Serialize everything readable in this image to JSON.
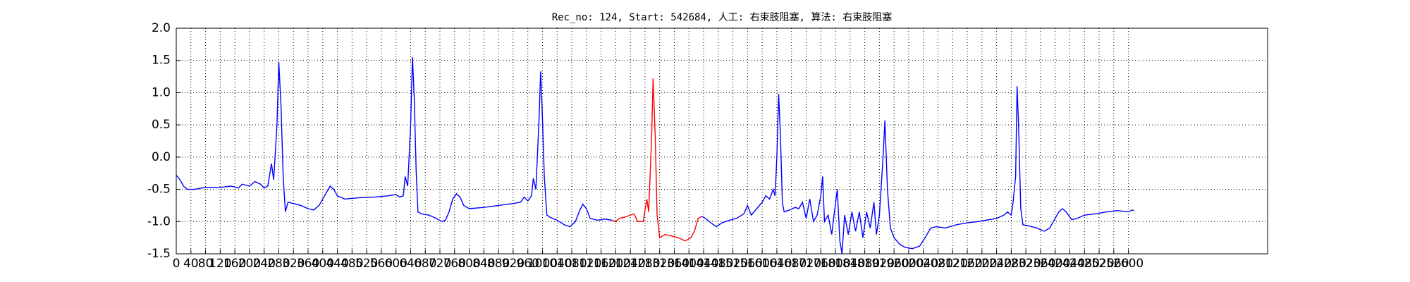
{
  "chart_data": {
    "type": "line",
    "title": "Rec_no: 124, Start: 542684, 人工: 右束肢阻塞, 算法: 右束肢阻塞",
    "xlim": [
      0,
      2980
    ],
    "ylim": [
      -1.5,
      2.0
    ],
    "xticks": [
      0,
      40,
      80,
      120,
      160,
      200,
      240,
      280,
      320,
      360,
      400,
      440,
      480,
      520,
      560,
      600,
      640,
      680,
      720,
      760,
      800,
      840,
      880,
      920,
      960,
      1000,
      1040,
      1080,
      1120,
      1160,
      1200,
      1240,
      1280,
      1320,
      1360,
      1400,
      1440,
      1480,
      1520,
      1560,
      1600,
      1640,
      1680,
      1720,
      1760,
      1800,
      1840,
      1880,
      1920,
      1960,
      2000,
      2040,
      2080,
      2120,
      2160,
      2200,
      2240,
      2280,
      2320,
      2360,
      2400,
      2440,
      2480,
      2520,
      2560,
      2600
    ],
    "yticks": [
      {
        "value": -1.5,
        "label": "-1.5"
      },
      {
        "value": -1,
        "label": "-1.0"
      },
      -0.5,
      {
        "value": 0,
        "label": "0.0"
      },
      0.5,
      {
        "value": 1,
        "label": "1.0"
      },
      1.5,
      {
        "value": 2,
        "label": "2.0"
      }
    ],
    "grid": true,
    "series": [
      {
        "color": "#0000ff",
        "x": [
          0,
          10,
          20,
          30,
          50,
          80,
          120,
          150,
          170,
          180,
          200,
          215,
          230,
          240,
          250,
          260,
          266,
          275,
          280,
          286,
          292,
          298,
          305,
          320,
          340,
          360,
          375,
          390,
          410,
          420,
          430,
          440,
          460,
          500,
          540,
          580,
          600,
          610,
          620,
          625,
          632,
          640,
          645,
          650,
          655,
          660,
          670,
          690,
          710,
          725,
          735,
          745,
          755,
          765,
          775,
          785,
          800,
          840,
          880,
          920,
          940,
          950,
          960,
          970,
          975,
          982,
          990,
          995,
          1000,
          1005,
          1012,
          1020,
          1040,
          1060,
          1075,
          1090,
          1100,
          1110,
          1120,
          1130,
          1150,
          1170,
          1190,
          null,
          1435,
          1445,
          1460,
          1475,
          1490,
          1510,
          1530,
          1550,
          1560,
          1570,
          1585,
          1600,
          1610,
          1620,
          1630,
          1635,
          1640,
          1645,
          1650,
          1655,
          1660,
          1675,
          1690,
          1700,
          1710,
          1720,
          1730,
          1740,
          1750,
          1760,
          1765,
          1770,
          1780,
          1790,
          1795,
          1805,
          1812,
          1818,
          1825,
          1835,
          1845,
          1855,
          1865,
          1875,
          1885,
          1895,
          1905,
          1912,
          1920,
          1930,
          1935,
          1942,
          1950,
          1960,
          1975,
          1990,
          2010,
          2030,
          2045,
          2060,
          2075,
          2100,
          2130,
          2160,
          2190,
          2220,
          2240,
          2260,
          2270,
          2280,
          2285,
          2292,
          2296,
          2300,
          2306,
          2312,
          2330,
          2350,
          2370,
          2385,
          2400,
          2410,
          2420,
          2430,
          2445,
          2460,
          2480,
          2510,
          2540,
          2570,
          2600,
          2610,
          2615
        ],
        "values": [
          -0.28,
          -0.35,
          -0.45,
          -0.5,
          -0.5,
          -0.47,
          -0.47,
          -0.45,
          -0.48,
          -0.42,
          -0.45,
          -0.38,
          -0.42,
          -0.48,
          -0.45,
          -0.1,
          -0.35,
          0.5,
          1.48,
          0.8,
          -0.3,
          -0.85,
          -0.7,
          -0.72,
          -0.75,
          -0.8,
          -0.82,
          -0.75,
          -0.55,
          -0.45,
          -0.5,
          -0.6,
          -0.65,
          -0.63,
          -0.62,
          -0.6,
          -0.58,
          -0.62,
          -0.6,
          -0.3,
          -0.45,
          0.5,
          1.55,
          0.9,
          -0.2,
          -0.85,
          -0.88,
          -0.9,
          -0.95,
          -1.0,
          -0.98,
          -0.85,
          -0.65,
          -0.57,
          -0.62,
          -0.75,
          -0.8,
          -0.78,
          -0.75,
          -0.72,
          -0.7,
          -0.62,
          -0.68,
          -0.6,
          -0.33,
          -0.5,
          0.5,
          1.33,
          0.6,
          -0.3,
          -0.9,
          -0.93,
          -0.98,
          -1.05,
          -1.08,
          -1.0,
          -0.85,
          -0.73,
          -0.8,
          -0.95,
          -0.98,
          -0.96,
          -0.98,
          null,
          -0.92,
          -0.95,
          -1.02,
          -1.08,
          -1.02,
          -0.98,
          -0.95,
          -0.88,
          -0.75,
          -0.9,
          -0.8,
          -0.7,
          -0.6,
          -0.65,
          -0.5,
          -0.6,
          0.0,
          0.98,
          0.3,
          -0.7,
          -0.85,
          -0.82,
          -0.78,
          -0.8,
          -0.7,
          -0.95,
          -0.65,
          -1.0,
          -0.9,
          -0.6,
          -0.3,
          -1.0,
          -0.9,
          -1.2,
          -0.95,
          -0.5,
          -1.3,
          -1.5,
          -0.9,
          -1.2,
          -0.85,
          -1.15,
          -0.85,
          -1.25,
          -0.85,
          -1.1,
          -0.7,
          -1.2,
          -0.9,
          0.0,
          0.57,
          -0.5,
          -1.1,
          -1.25,
          -1.35,
          -1.4,
          -1.42,
          -1.38,
          -1.25,
          -1.1,
          -1.08,
          -1.1,
          -1.05,
          -1.02,
          -1.0,
          -0.97,
          -0.95,
          -0.9,
          -0.85,
          -0.9,
          -0.7,
          -0.3,
          1.1,
          0.5,
          -0.8,
          -1.05,
          -1.07,
          -1.1,
          -1.15,
          -1.1,
          -0.95,
          -0.85,
          -0.8,
          -0.85,
          -0.97,
          -0.95,
          -0.9,
          -0.88,
          -0.85,
          -0.83,
          -0.85,
          -0.82,
          -0.83
        ]
      },
      {
        "color": "#ff0000",
        "x": [
          1190,
          1200,
          1210,
          1225,
          1240,
          1250,
          1260,
          1275,
          1285,
          1290,
          1298,
          1302,
          1308,
          1313,
          1320,
          1335,
          1350,
          1370,
          1390,
          1405,
          1415,
          1425,
          1435
        ],
        "values": [
          -0.98,
          -1.0,
          -0.95,
          -0.93,
          -0.9,
          -0.88,
          -1.0,
          -1.0,
          -0.65,
          -0.85,
          0.3,
          1.22,
          0.3,
          -0.9,
          -1.25,
          -1.2,
          -1.22,
          -1.25,
          -1.3,
          -1.25,
          -1.15,
          -0.95,
          -0.92
        ]
      }
    ]
  }
}
